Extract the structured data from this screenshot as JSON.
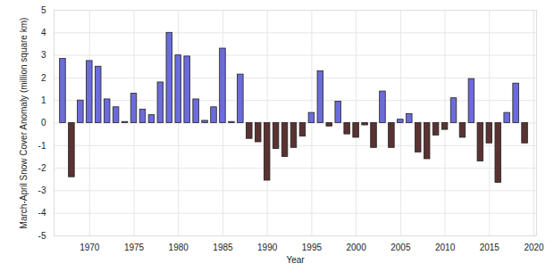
{
  "chart_data": {
    "type": "bar",
    "x_label": "Year",
    "y_label": "March-April Snow Cover Anomaly (million square km)",
    "x": [
      1967,
      1968,
      1969,
      1970,
      1971,
      1972,
      1973,
      1974,
      1975,
      1976,
      1977,
      1978,
      1979,
      1980,
      1981,
      1982,
      1983,
      1984,
      1985,
      1986,
      1987,
      1988,
      1989,
      1990,
      1991,
      1992,
      1993,
      1994,
      1995,
      1996,
      1997,
      1998,
      1999,
      2000,
      2001,
      2002,
      2003,
      2004,
      2005,
      2006,
      2007,
      2008,
      2009,
      2010,
      2011,
      2012,
      2013,
      2014,
      2015,
      2016,
      2017,
      2018,
      2019
    ],
    "values": [
      2.85,
      -2.4,
      1.0,
      2.75,
      2.5,
      1.05,
      0.7,
      0.05,
      1.3,
      0.6,
      0.35,
      1.8,
      4.0,
      3.0,
      2.95,
      1.05,
      0.1,
      0.7,
      3.3,
      0.05,
      2.15,
      -0.7,
      -0.85,
      -2.55,
      -1.15,
      -1.5,
      -1.1,
      -0.6,
      0.45,
      2.3,
      -0.15,
      0.95,
      -0.5,
      -0.65,
      -0.1,
      -1.1,
      1.4,
      -1.1,
      0.15,
      0.4,
      -1.3,
      -1.6,
      -0.55,
      -0.3,
      1.1,
      -0.65,
      1.95,
      -1.7,
      -0.9,
      -2.65,
      0.45,
      1.75,
      -0.9
    ],
    "colors": [
      "#6b6bdb",
      "#5a3232",
      "#6b6bdb",
      "#6b6bdb",
      "#6b6bdb",
      "#6b6bdb",
      "#6b6bdb",
      "#6b6bdb",
      "#6b6bdb",
      "#6b6bdb",
      "#6b6bdb",
      "#6b6bdb",
      "#6b6bdb",
      "#6b6bdb",
      "#6b6bdb",
      "#6b6bdb",
      "#6b6bdb",
      "#6b6bdb",
      "#6b6bdb",
      "#6b6bdb",
      "#6b6bdb",
      "#5a3232",
      "#5a3232",
      "#5a3232",
      "#5a3232",
      "#5a3232",
      "#5a3232",
      "#5a3232",
      "#6b6bdb",
      "#6b6bdb",
      "#5a3232",
      "#6b6bdb",
      "#5a3232",
      "#5a3232",
      "#5a3232",
      "#5a3232",
      "#6b6bdb",
      "#5a3232",
      "#6b6bdb",
      "#6b6bdb",
      "#5a3232",
      "#5a3232",
      "#5a3232",
      "#5a3232",
      "#6b6bdb",
      "#5a3232",
      "#6b6bdb",
      "#5a3232",
      "#5a3232",
      "#5a3232",
      "#6b6bdb",
      "#6b6bdb",
      "#5a3232"
    ],
    "xlim": [
      1966,
      2020.3
    ],
    "xticks": [
      1970,
      1975,
      1980,
      1985,
      1990,
      1995,
      2000,
      2005,
      2010,
      2015,
      2020
    ],
    "ylim": [
      -5,
      5
    ],
    "yticks": [
      -5,
      -4,
      -3,
      -2,
      -1,
      0,
      1,
      2,
      3,
      4,
      5
    ],
    "grid": true
  }
}
